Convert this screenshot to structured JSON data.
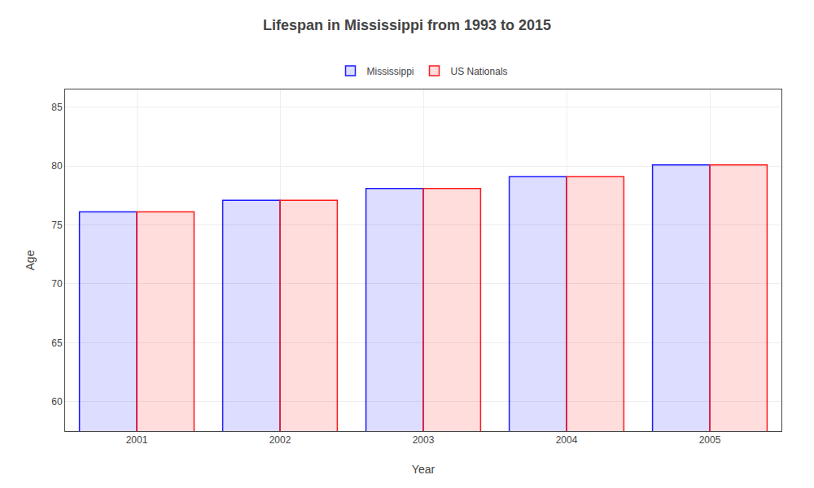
{
  "chart_data": {
    "type": "bar",
    "title": "Lifespan in Mississippi from 1993 to 2015",
    "x_label": "Year",
    "y_label": "Age",
    "categories": [
      "2001",
      "2002",
      "2003",
      "2004",
      "2005"
    ],
    "series": [
      {
        "name": "Mississippi",
        "color": "#1a1aff",
        "values": [
          76.1,
          77.1,
          78.1,
          79.1,
          80.1
        ]
      },
      {
        "name": "US Nationals",
        "color": "#ff1a1a",
        "values": [
          76.1,
          77.1,
          78.1,
          79.1,
          80.1
        ]
      }
    ],
    "ylim": [
      57.5,
      86.5
    ],
    "yticks": [
      60,
      65,
      70,
      75,
      80,
      85
    ],
    "grid": true,
    "legend": "top"
  }
}
